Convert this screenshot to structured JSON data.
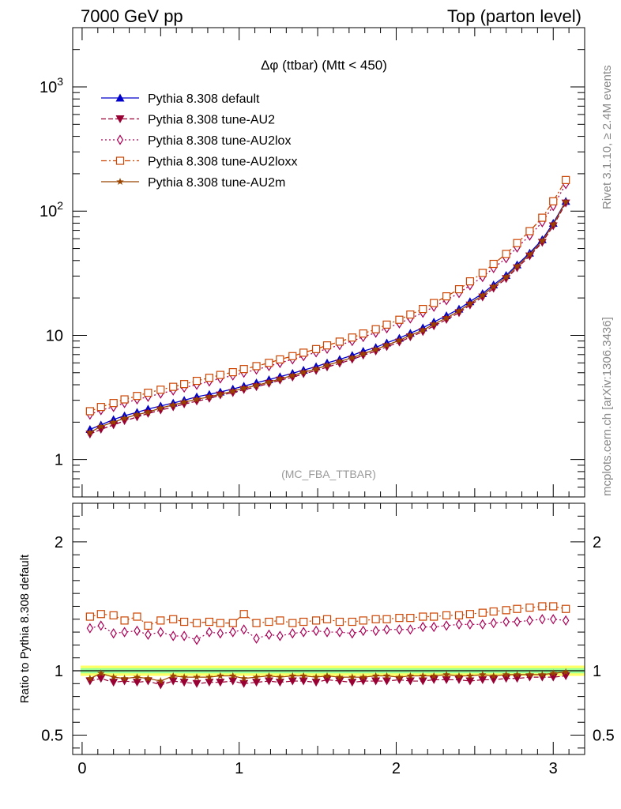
{
  "header": {
    "left": "7000 GeV pp",
    "right": "Top (parton level)"
  },
  "side_labels": {
    "rivet": "Rivet 3.1.10, ≥ 2.4M events",
    "mcplots": "mcplots.cern.ch [arXiv:1306.3436]"
  },
  "colors": {
    "default": "#0000cc",
    "au2": "#990033",
    "au2lox": "#aa0055",
    "au2loxx": "#cc4400",
    "au2m": "#994400",
    "band_outer": "#ffff66",
    "band_inner": "#99ff99"
  },
  "chart_data": [
    {
      "type": "line",
      "title": "Δφ (ttbar) (Mtt < 450)",
      "watermark": "(MC_FBA_TTBAR)",
      "xlabel": "",
      "ylabel": "",
      "yscale": "log",
      "xlim": [
        -0.06,
        3.2
      ],
      "ylim": [
        0.5,
        3000
      ],
      "y_ticks": [
        "1",
        "10",
        "10^2",
        "10^3"
      ],
      "x_ticks": [
        "0",
        "1",
        "2",
        "3"
      ],
      "legend_position": "top-left",
      "x": [
        0.05,
        0.12,
        0.2,
        0.27,
        0.35,
        0.42,
        0.5,
        0.58,
        0.65,
        0.73,
        0.81,
        0.88,
        0.96,
        1.03,
        1.11,
        1.19,
        1.26,
        1.34,
        1.41,
        1.49,
        1.56,
        1.64,
        1.72,
        1.79,
        1.87,
        1.94,
        2.02,
        2.09,
        2.17,
        2.24,
        2.32,
        2.4,
        2.47,
        2.55,
        2.62,
        2.7,
        2.77,
        2.85,
        2.93,
        3.0,
        3.08
      ],
      "series": [
        {
          "name": "Pythia 8.308 default",
          "marker": "triangle-up",
          "line": "solid",
          "color_key": "default",
          "values": [
            1.75,
            1.9,
            2.1,
            2.25,
            2.4,
            2.55,
            2.7,
            2.85,
            3.0,
            3.2,
            3.35,
            3.5,
            3.7,
            3.9,
            4.15,
            4.4,
            4.65,
            4.95,
            5.25,
            5.6,
            6.0,
            6.4,
            6.9,
            7.45,
            8.0,
            8.7,
            9.5,
            10.4,
            11.5,
            12.8,
            14.4,
            16.3,
            18.7,
            21.7,
            25.5,
            30.4,
            37.0,
            46.0,
            59.0,
            80.0,
            120.0
          ]
        },
        {
          "name": "Pythia 8.308 tune-AU2",
          "marker": "triangle-down",
          "line": "dashed",
          "color_key": "au2",
          "values": [
            1.6,
            1.75,
            1.9,
            2.05,
            2.2,
            2.35,
            2.5,
            2.65,
            2.8,
            2.95,
            3.1,
            3.3,
            3.45,
            3.65,
            3.85,
            4.1,
            4.35,
            4.6,
            4.9,
            5.2,
            5.55,
            5.95,
            6.4,
            6.9,
            7.45,
            8.1,
            8.8,
            9.7,
            10.7,
            11.9,
            13.4,
            15.2,
            17.5,
            20.3,
            23.9,
            28.6,
            34.9,
            43.5,
            56.0,
            76.0,
            116.0
          ]
        },
        {
          "name": "Pythia 8.308 tune-AU2lox",
          "marker": "diamond-open",
          "line": "dotted",
          "color_key": "au2lox",
          "values": [
            2.3,
            2.5,
            2.65,
            2.85,
            3.05,
            3.2,
            3.4,
            3.6,
            3.8,
            4.0,
            4.25,
            4.5,
            4.75,
            5.0,
            5.3,
            5.65,
            6.0,
            6.4,
            6.8,
            7.3,
            7.8,
            8.35,
            9.0,
            9.7,
            10.5,
            11.4,
            12.5,
            13.7,
            15.2,
            17.0,
            19.2,
            21.9,
            25.3,
            29.5,
            34.8,
            41.8,
            51.0,
            63.5,
            81.5,
            110.0,
            165.0
          ]
        },
        {
          "name": "Pythia 8.308 tune-AU2loxx",
          "marker": "square-open",
          "line": "dashdot",
          "color_key": "au2loxx",
          "values": [
            2.45,
            2.65,
            2.85,
            3.05,
            3.25,
            3.45,
            3.65,
            3.85,
            4.05,
            4.3,
            4.55,
            4.8,
            5.05,
            5.35,
            5.65,
            6.0,
            6.4,
            6.8,
            7.25,
            7.75,
            8.3,
            8.9,
            9.6,
            10.35,
            11.2,
            12.2,
            13.35,
            14.7,
            16.3,
            18.2,
            20.6,
            23.5,
            27.2,
            31.8,
            37.6,
            45.2,
            55.3,
            69.0,
            88.5,
            120.0,
            178.0
          ]
        },
        {
          "name": "Pythia 8.308 tune-AU2m",
          "marker": "star",
          "line": "solid",
          "color_key": "au2m",
          "values": [
            1.65,
            1.85,
            2.0,
            2.15,
            2.3,
            2.4,
            2.6,
            2.75,
            2.9,
            3.05,
            3.2,
            3.35,
            3.55,
            3.75,
            3.95,
            4.2,
            4.45,
            4.75,
            5.05,
            5.35,
            5.75,
            6.15,
            6.6,
            7.1,
            7.7,
            8.35,
            9.1,
            10.0,
            11.0,
            12.3,
            13.8,
            15.7,
            18.0,
            21.0,
            24.7,
            29.5,
            36.0,
            44.8,
            57.5,
            78.0,
            119.0
          ]
        }
      ]
    },
    {
      "type": "line",
      "title": "",
      "ylabel": "Ratio to Pythia 8.308 default",
      "xlim": [
        -0.06,
        3.2
      ],
      "ylim": [
        0.35,
        2.3
      ],
      "y_ticks": [
        "0.5",
        "1",
        "2"
      ],
      "x_ticks": [
        "0",
        "1",
        "2",
        "3"
      ],
      "reference_band": {
        "inner": [
          0.98,
          1.02
        ],
        "outer": [
          0.96,
          1.04
        ]
      },
      "x": [
        0.05,
        0.12,
        0.2,
        0.27,
        0.35,
        0.42,
        0.5,
        0.58,
        0.65,
        0.73,
        0.81,
        0.88,
        0.96,
        1.03,
        1.11,
        1.19,
        1.26,
        1.34,
        1.41,
        1.49,
        1.56,
        1.64,
        1.72,
        1.79,
        1.87,
        1.94,
        2.02,
        2.09,
        2.17,
        2.24,
        2.32,
        2.4,
        2.47,
        2.55,
        2.62,
        2.7,
        2.77,
        2.85,
        2.93,
        3.0,
        3.08
      ],
      "series": [
        {
          "name": "Pythia 8.308 default",
          "color_key": "default",
          "values": [
            1,
            1,
            1,
            1,
            1,
            1,
            1,
            1,
            1,
            1,
            1,
            1,
            1,
            1,
            1,
            1,
            1,
            1,
            1,
            1,
            1,
            1,
            1,
            1,
            1,
            1,
            1,
            1,
            1,
            1,
            1,
            1,
            1,
            1,
            1,
            1,
            1,
            1,
            1,
            1,
            1
          ]
        },
        {
          "name": "Pythia 8.308 tune-AU2",
          "color_key": "au2",
          "values": [
            0.92,
            0.94,
            0.91,
            0.92,
            0.91,
            0.92,
            0.89,
            0.92,
            0.91,
            0.9,
            0.91,
            0.91,
            0.92,
            0.9,
            0.91,
            0.92,
            0.91,
            0.92,
            0.92,
            0.91,
            0.93,
            0.92,
            0.91,
            0.92,
            0.92,
            0.92,
            0.93,
            0.92,
            0.92,
            0.93,
            0.93,
            0.93,
            0.92,
            0.93,
            0.93,
            0.94,
            0.94,
            0.95,
            0.95,
            0.95,
            0.96
          ]
        },
        {
          "name": "Pythia 8.308 tune-AU2lox",
          "color_key": "au2lox",
          "values": [
            1.33,
            1.35,
            1.29,
            1.3,
            1.31,
            1.28,
            1.3,
            1.27,
            1.27,
            1.24,
            1.3,
            1.29,
            1.3,
            1.32,
            1.25,
            1.28,
            1.27,
            1.29,
            1.3,
            1.31,
            1.3,
            1.3,
            1.29,
            1.31,
            1.31,
            1.32,
            1.32,
            1.32,
            1.34,
            1.34,
            1.35,
            1.36,
            1.36,
            1.36,
            1.37,
            1.38,
            1.38,
            1.39,
            1.4,
            1.4,
            1.39
          ]
        },
        {
          "name": "Pythia 8.308 tune-AU2loxx",
          "color_key": "au2loxx",
          "values": [
            1.42,
            1.44,
            1.43,
            1.39,
            1.42,
            1.35,
            1.39,
            1.4,
            1.38,
            1.37,
            1.38,
            1.37,
            1.37,
            1.44,
            1.37,
            1.38,
            1.39,
            1.37,
            1.38,
            1.39,
            1.4,
            1.38,
            1.38,
            1.39,
            1.4,
            1.4,
            1.41,
            1.41,
            1.42,
            1.42,
            1.43,
            1.43,
            1.44,
            1.45,
            1.46,
            1.47,
            1.48,
            1.49,
            1.5,
            1.5,
            1.48
          ]
        },
        {
          "name": "Pythia 8.308 tune-AU2m",
          "color_key": "au2m",
          "values": [
            0.94,
            0.98,
            0.95,
            0.94,
            0.95,
            0.94,
            0.92,
            0.96,
            0.95,
            0.95,
            0.95,
            0.96,
            0.96,
            0.94,
            0.95,
            0.96,
            0.95,
            0.96,
            0.96,
            0.95,
            0.96,
            0.95,
            0.95,
            0.95,
            0.96,
            0.96,
            0.95,
            0.96,
            0.96,
            0.96,
            0.97,
            0.96,
            0.96,
            0.97,
            0.96,
            0.97,
            0.97,
            0.97,
            0.97,
            0.98,
            0.99
          ]
        }
      ]
    }
  ]
}
